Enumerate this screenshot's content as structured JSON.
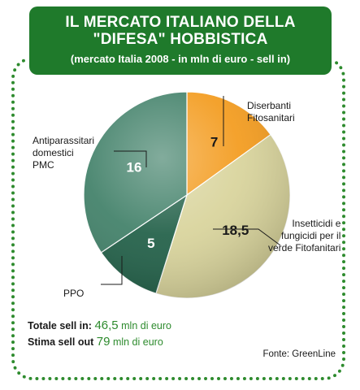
{
  "title": {
    "line1": "IL MERCATO ITALIANO DELLA",
    "line2": "\"DIFESA\" HOBBISTICA",
    "subtitle": "(mercato Italia 2008 - in mln di euro - sell in)"
  },
  "chart_data": {
    "type": "pie",
    "slices": [
      {
        "label": [
          "Diserbanti",
          "Fitosanitari"
        ],
        "value": 7,
        "value_text": "7",
        "color": "#f39a1b"
      },
      {
        "label": [
          "Insetticidi e",
          "fungicidi per il",
          "verde Fitofanitari"
        ],
        "value": 18.5,
        "value_text": "18,5",
        "color": "#d8d39a"
      },
      {
        "label": [
          "PPO"
        ],
        "value": 5,
        "value_text": "5",
        "color": "#1f5e46"
      },
      {
        "label": [
          "Antiparassitari",
          "domestici",
          "PMC"
        ],
        "value": 16,
        "value_text": "16",
        "color": "#3f7f67"
      }
    ]
  },
  "totals": {
    "sell_in_label": "Totale sell in:",
    "sell_in_value": "46,5",
    "sell_in_unit": "mln di euro",
    "sell_out_label": "Stima sell out",
    "sell_out_value": "79",
    "sell_out_unit": "mln di euro"
  },
  "source": "Fonte: GreenLine",
  "colors": {
    "frame": "#2e8b2e",
    "title_bg": "#1f7a2b"
  }
}
